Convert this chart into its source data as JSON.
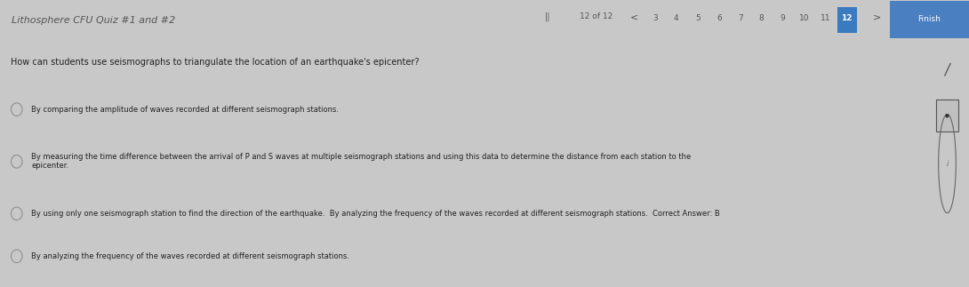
{
  "bg_color": "#c8c8c8",
  "header_bg": "#c8c8c8",
  "header_text": "Lithosphere CFU Quiz #1 and #2",
  "header_text_color": "#555555",
  "header_text_size": 8,
  "nav_numbers": [
    "3",
    "4",
    "5",
    "6",
    "7",
    "8",
    "9",
    "10",
    "11",
    "12"
  ],
  "blue_bar_color": "#2a6abf",
  "content_bg": "#d4d4d4",
  "question_text": "How can students use seismographs to triangulate the location of an earthquake's epicenter?",
  "question_color": "#222222",
  "question_size": 7,
  "options": [
    "By comparing the amplitude of waves recorded at different seismograph stations.",
    "By measuring the time difference between the arrival of P and S waves at multiple seismograph stations and using this data to determine the distance from each station to the\nepicenter.",
    "By using only one seismograph station to find the direction of the earthquake.  By analyzing the frequency of the waves recorded at different seismograph stations.  Correct Answer: B",
    "By analyzing the frequency of the waves recorded at different seismograph stations."
  ],
  "option_color": "#222222",
  "option_size": 6,
  "finish_bg": "#4a7fc1",
  "right_panel_bg": "#c0c0c0"
}
